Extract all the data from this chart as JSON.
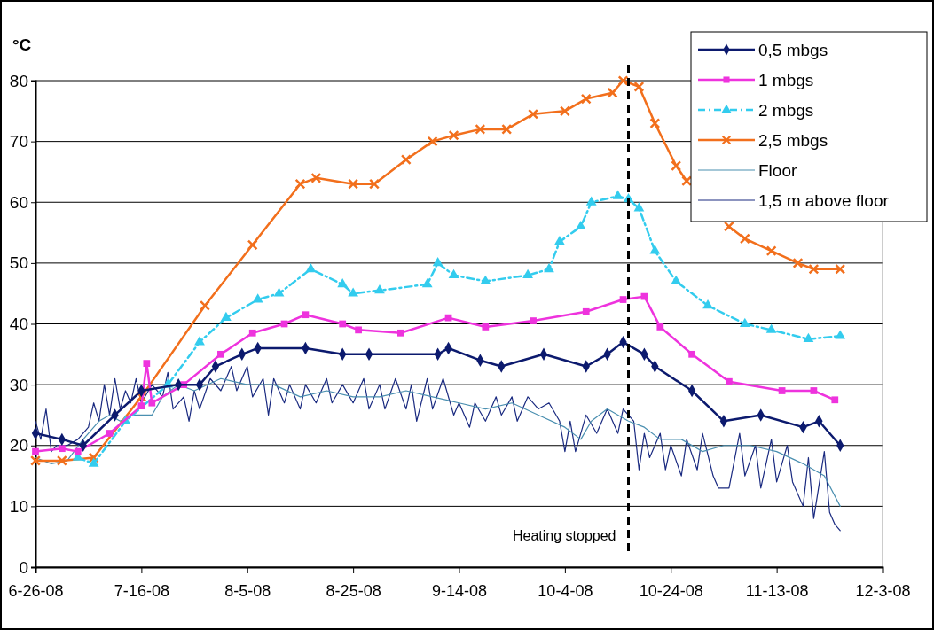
{
  "chart_data": {
    "type": "line",
    "ylabel": "°C",
    "xlim": [
      "2008-06-26",
      "2008-12-03"
    ],
    "ylim": [
      0,
      80
    ],
    "xticks": [
      {
        "value": "2008-06-26",
        "label": "6-26-08"
      },
      {
        "value": "2008-07-16",
        "label": "7-16-08"
      },
      {
        "value": "2008-08-05",
        "label": "8-5-08"
      },
      {
        "value": "2008-08-25",
        "label": "8-25-08"
      },
      {
        "value": "2008-09-14",
        "label": "9-14-08"
      },
      {
        "value": "2008-10-04",
        "label": "10-4-08"
      },
      {
        "value": "2008-10-24",
        "label": "10-24-08"
      },
      {
        "value": "2008-11-13",
        "label": "11-13-08"
      },
      {
        "value": "2008-12-03",
        "label": "12-3-08"
      }
    ],
    "yticks": [
      0,
      10,
      20,
      30,
      40,
      50,
      60,
      70,
      80
    ],
    "grid": "y",
    "legend": "top right",
    "ref_lines": [
      {
        "axis": "x",
        "value": "2008-10-16",
        "label": "Heating stopped",
        "color": "#000000",
        "line_style": "dashed"
      }
    ],
    "series": [
      {
        "name": "0,5 mbgs",
        "color": "#0c1a6e",
        "marker": "diamond",
        "line_style": "solid",
        "x": [
          "2008-06-26",
          "2008-07-01",
          "2008-07-05",
          "2008-07-11",
          "2008-07-16",
          "2008-07-23",
          "2008-07-27",
          "2008-07-30",
          "2008-08-04",
          "2008-08-07",
          "2008-08-16",
          "2008-08-23",
          "2008-08-28",
          "2008-09-10",
          "2008-09-12",
          "2008-09-18",
          "2008-09-22",
          "2008-09-30",
          "2008-10-08",
          "2008-10-12",
          "2008-10-15",
          "2008-10-19",
          "2008-10-21",
          "2008-10-28",
          "2008-11-03",
          "2008-11-10",
          "2008-11-18",
          "2008-11-21",
          "2008-11-25"
        ],
        "values": [
          22,
          21,
          20,
          25,
          29,
          30,
          30,
          33,
          35,
          36,
          36,
          35,
          35,
          35,
          36,
          34,
          33,
          35,
          33,
          35,
          37,
          35,
          33,
          29,
          24,
          25,
          23,
          24,
          20
        ]
      },
      {
        "name": "1 mbgs",
        "color": "#ee33dd",
        "marker": "square",
        "line_style": "solid",
        "x": [
          "2008-06-26",
          "2008-07-01",
          "2008-07-04",
          "2008-07-10",
          "2008-07-16",
          "2008-07-17",
          "2008-07-18",
          "2008-07-24",
          "2008-07-31",
          "2008-08-06",
          "2008-08-12",
          "2008-08-16",
          "2008-08-23",
          "2008-08-26",
          "2008-09-03",
          "2008-09-12",
          "2008-09-19",
          "2008-09-28",
          "2008-10-08",
          "2008-10-15",
          "2008-10-19",
          "2008-10-22",
          "2008-10-28",
          "2008-11-04",
          "2008-11-14",
          "2008-11-20",
          "2008-11-24"
        ],
        "values": [
          19,
          19.5,
          19,
          22,
          26.5,
          33.5,
          27,
          30,
          35,
          38.5,
          40,
          41.5,
          40,
          39,
          38.5,
          41,
          39.5,
          40.5,
          42,
          44,
          44.5,
          39.5,
          35,
          30.5,
          29,
          29,
          27.5
        ]
      },
      {
        "name": "2 mbgs",
        "color": "#33ccee",
        "marker": "triangle",
        "line_style": "dashed",
        "x": [
          "2008-07-04",
          "2008-07-07",
          "2008-07-13",
          "2008-07-21",
          "2008-07-27",
          "2008-08-01",
          "2008-08-07",
          "2008-08-11",
          "2008-08-17",
          "2008-08-23",
          "2008-08-25",
          "2008-08-30",
          "2008-09-08",
          "2008-09-10",
          "2008-09-13",
          "2008-09-19",
          "2008-09-27",
          "2008-10-01",
          "2008-10-03",
          "2008-10-07",
          "2008-10-09",
          "2008-10-14",
          "2008-10-16",
          "2008-10-18",
          "2008-10-21",
          "2008-10-25",
          "2008-10-31",
          "2008-11-07",
          "2008-11-12",
          "2008-11-19",
          "2008-11-25"
        ],
        "values": [
          18,
          17,
          24,
          30,
          37,
          41,
          44,
          45,
          49,
          46.5,
          45,
          45.5,
          46.5,
          50,
          48,
          47,
          48,
          49,
          53.5,
          56,
          60,
          61,
          60.5,
          59,
          52,
          47,
          43,
          40,
          39,
          37.5,
          38
        ]
      },
      {
        "name": "2,5 mbgs",
        "color": "#f26f1c",
        "marker": "cross",
        "line_style": "solid",
        "x": [
          "2008-06-26",
          "2008-07-01",
          "2008-07-07",
          "2008-07-16",
          "2008-07-28",
          "2008-08-06",
          "2008-08-15",
          "2008-08-18",
          "2008-08-25",
          "2008-08-29",
          "2008-09-04",
          "2008-09-09",
          "2008-09-13",
          "2008-09-18",
          "2008-09-23",
          "2008-09-28",
          "2008-10-04",
          "2008-10-08",
          "2008-10-13",
          "2008-10-15",
          "2008-10-18",
          "2008-10-21",
          "2008-10-25",
          "2008-10-27",
          "2008-10-31",
          "2008-11-04",
          "2008-11-07",
          "2008-11-12",
          "2008-11-17",
          "2008-11-20",
          "2008-11-25"
        ],
        "values": [
          17.5,
          17.5,
          18,
          28,
          43,
          53,
          63,
          64,
          63,
          63,
          67,
          70,
          71,
          72,
          72,
          74.5,
          75,
          77,
          78,
          80,
          79,
          73,
          66,
          63.5,
          null,
          56,
          54,
          52,
          50,
          49,
          49
        ]
      },
      {
        "name": "Floor",
        "color": "#4a8fb0",
        "marker": "none",
        "line_style": "solid",
        "x": [
          "2008-06-26",
          "2008-06-29",
          "2008-07-02",
          "2008-07-05",
          "2008-07-08",
          "2008-07-10",
          "2008-07-12",
          "2008-07-14",
          "2008-07-18",
          "2008-07-20",
          "2008-07-23",
          "2008-07-26",
          "2008-07-31",
          "2008-08-05",
          "2008-08-10",
          "2008-08-15",
          "2008-08-20",
          "2008-08-25",
          "2008-08-30",
          "2008-09-04",
          "2008-09-09",
          "2008-09-14",
          "2008-09-19",
          "2008-09-24",
          "2008-09-29",
          "2008-10-04",
          "2008-10-07",
          "2008-10-09",
          "2008-10-12",
          "2008-10-16",
          "2008-10-19",
          "2008-10-22",
          "2008-10-26",
          "2008-10-30",
          "2008-11-03",
          "2008-11-08",
          "2008-11-13",
          "2008-11-18",
          "2008-11-22",
          "2008-11-25"
        ],
        "values": [
          18,
          17,
          17.5,
          21,
          24,
          25,
          24,
          25,
          25,
          28,
          30,
          29,
          31,
          30,
          30,
          28,
          29,
          28,
          28,
          29,
          28,
          27,
          26,
          27,
          25,
          23,
          21,
          24,
          26,
          24,
          23,
          21,
          21,
          19,
          20,
          20,
          19,
          17,
          15,
          10
        ]
      },
      {
        "name": "1,5 m above floor",
        "color": "#1a2a80",
        "marker": "none",
        "line_style": "solid",
        "x": [
          "2008-06-26",
          "2008-06-27",
          "2008-06-28",
          "2008-06-29",
          "2008-06-30",
          "2008-07-02",
          "2008-07-04",
          "2008-07-06",
          "2008-07-07",
          "2008-07-08",
          "2008-07-09",
          "2008-07-10",
          "2008-07-11",
          "2008-07-12",
          "2008-07-13",
          "2008-07-14",
          "2008-07-15",
          "2008-07-16",
          "2008-07-18",
          "2008-07-20",
          "2008-07-21",
          "2008-07-22",
          "2008-07-24",
          "2008-07-25",
          "2008-07-26",
          "2008-07-27",
          "2008-07-29",
          "2008-07-31",
          "2008-08-02",
          "2008-08-03",
          "2008-08-05",
          "2008-08-06",
          "2008-08-08",
          "2008-08-09",
          "2008-08-10",
          "2008-08-12",
          "2008-08-13",
          "2008-08-15",
          "2008-08-16",
          "2008-08-18",
          "2008-08-20",
          "2008-08-21",
          "2008-08-23",
          "2008-08-25",
          "2008-08-27",
          "2008-08-28",
          "2008-08-30",
          "2008-08-31",
          "2008-09-02",
          "2008-09-04",
          "2008-09-05",
          "2008-09-06",
          "2008-09-08",
          "2008-09-09",
          "2008-09-11",
          "2008-09-13",
          "2008-09-14",
          "2008-09-16",
          "2008-09-17",
          "2008-09-19",
          "2008-09-21",
          "2008-09-22",
          "2008-09-24",
          "2008-09-25",
          "2008-09-27",
          "2008-09-29",
          "2008-10-01",
          "2008-10-03",
          "2008-10-04",
          "2008-10-05",
          "2008-10-06",
          "2008-10-08",
          "2008-10-10",
          "2008-10-12",
          "2008-10-14",
          "2008-10-15",
          "2008-10-17",
          "2008-10-18",
          "2008-10-19",
          "2008-10-20",
          "2008-10-22",
          "2008-10-23",
          "2008-10-24",
          "2008-10-26",
          "2008-10-27",
          "2008-10-29",
          "2008-10-30",
          "2008-11-01",
          "2008-11-02",
          "2008-11-04",
          "2008-11-06",
          "2008-11-07",
          "2008-11-09",
          "2008-11-10",
          "2008-11-12",
          "2008-11-13",
          "2008-11-15",
          "2008-11-16",
          "2008-11-18",
          "2008-11-19",
          "2008-11-20",
          "2008-11-22",
          "2008-11-23",
          "2008-11-24",
          "2008-11-25"
        ],
        "values": [
          24,
          21,
          26,
          19,
          20,
          20,
          21,
          23,
          27,
          24,
          30,
          25,
          31,
          26,
          29,
          27,
          31,
          27,
          30,
          28,
          32,
          26,
          28,
          24,
          29,
          26,
          31,
          29,
          33,
          29,
          33,
          28,
          31,
          25,
          31,
          27,
          30,
          26,
          30,
          27,
          31,
          27,
          30,
          27,
          31,
          26,
          30,
          26,
          31,
          26,
          30,
          24,
          31,
          26,
          31,
          25,
          27,
          23,
          27,
          24,
          28,
          25,
          28,
          24,
          28,
          26,
          27,
          24,
          19,
          24,
          19,
          25,
          22,
          26,
          22,
          26,
          24,
          16,
          22,
          18,
          22,
          16,
          20,
          15,
          21,
          16,
          22,
          15,
          13,
          13,
          22,
          15,
          20,
          13,
          21,
          14,
          20,
          14,
          10,
          18,
          8,
          19,
          9,
          7,
          6
        ]
      }
    ]
  }
}
